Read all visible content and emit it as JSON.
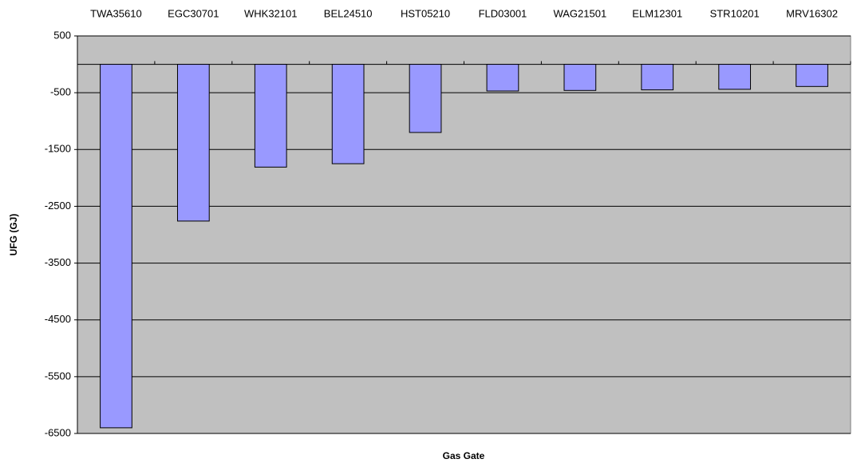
{
  "chart_data": {
    "type": "bar",
    "categories": [
      "TWA35610",
      "EGC30701",
      "WHK32101",
      "BEL24510",
      "HST05210",
      "FLD03001",
      "WAG21501",
      "ELM12301",
      "STR10201",
      "MRV16302"
    ],
    "values": [
      -6400,
      -2760,
      -1810,
      -1750,
      -1200,
      -470,
      -460,
      -450,
      -440,
      -390
    ],
    "color": "#9999ff",
    "x_label": "Gas Gate",
    "y_label": "UFG (GJ)",
    "ylim": [
      -6500,
      500
    ],
    "yticks": [
      500,
      -500,
      -1500,
      -2500,
      -3500,
      -4500,
      -5500,
      -6500
    ],
    "grid": true
  }
}
